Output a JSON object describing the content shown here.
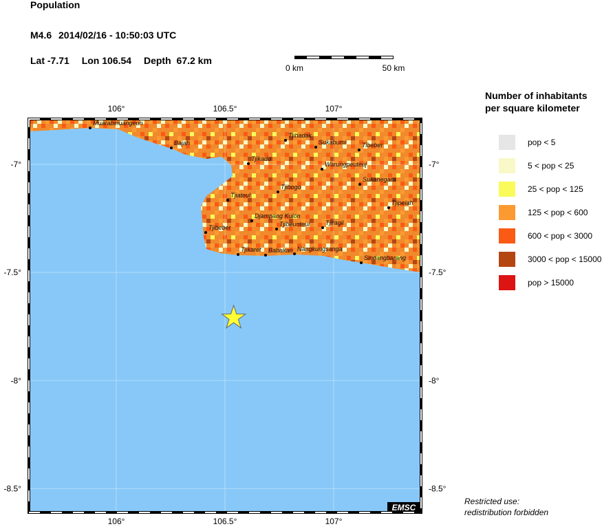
{
  "title": "Population",
  "event": {
    "magnitude": "M4.6",
    "datetime": "2014/02/16 - 10:50:03 UTC",
    "lat_label": "Lat",
    "lat": -7.71,
    "lon_label": "Lon",
    "lon": 106.54,
    "depth_label": "Depth",
    "depth": "67.2 km"
  },
  "scale_bar": {
    "labels": [
      "0 km",
      "50 km"
    ]
  },
  "map": {
    "lonlim": [
      105.598,
      107.402
    ],
    "latlim": [
      -8.61,
      -6.79
    ],
    "lonticks": [
      {
        "value": 106,
        "label": "106°"
      },
      {
        "value": 106.5,
        "label": "106.5°"
      },
      {
        "value": 107,
        "label": "107°"
      }
    ],
    "latticks": [
      {
        "value": -7,
        "label": "-7°"
      },
      {
        "value": -7.5,
        "label": "-7.5°"
      },
      {
        "value": -8,
        "label": "-8°"
      },
      {
        "value": -8.5,
        "label": "-8.5°"
      }
    ],
    "sea_color": "#88c8f8",
    "cities": [
      "Muarabinuangeun",
      "Bajah",
      "Tjihadak",
      "Sukabumi",
      "Tibeber",
      "Tjikadu",
      "Warungpeuteuj",
      "Sukanegara",
      "Tjibogo",
      "Tjiateul",
      "Tjipelah",
      "Djampang Kulon",
      "Tjibeber",
      "Tjibeunteui",
      "Tjiragil",
      "Tjikaret",
      "Babakan",
      "Nangkungsanga",
      "Sindangbarang"
    ],
    "credit": "EMSC"
  },
  "legend": {
    "title": [
      "Number of inhabitants",
      "per square kilometer"
    ],
    "entries": [
      {
        "label": "pop < 5",
        "color": "#e6e6e6"
      },
      {
        "label": "5 < pop < 25",
        "color": "#f8f8c8"
      },
      {
        "label": "25 < pop < 125",
        "color": "#fafa5a"
      },
      {
        "label": "125 < pop < 600",
        "color": "#fc9a32"
      },
      {
        "label": "600 < pop < 3000",
        "color": "#fa5a14"
      },
      {
        "label": "3000 < pop < 15000",
        "color": "#b44614"
      },
      {
        "label": "pop > 15000",
        "color": "#dc1414"
      }
    ]
  },
  "footer": [
    "Restricted use:",
    "redistribution forbidden"
  ]
}
